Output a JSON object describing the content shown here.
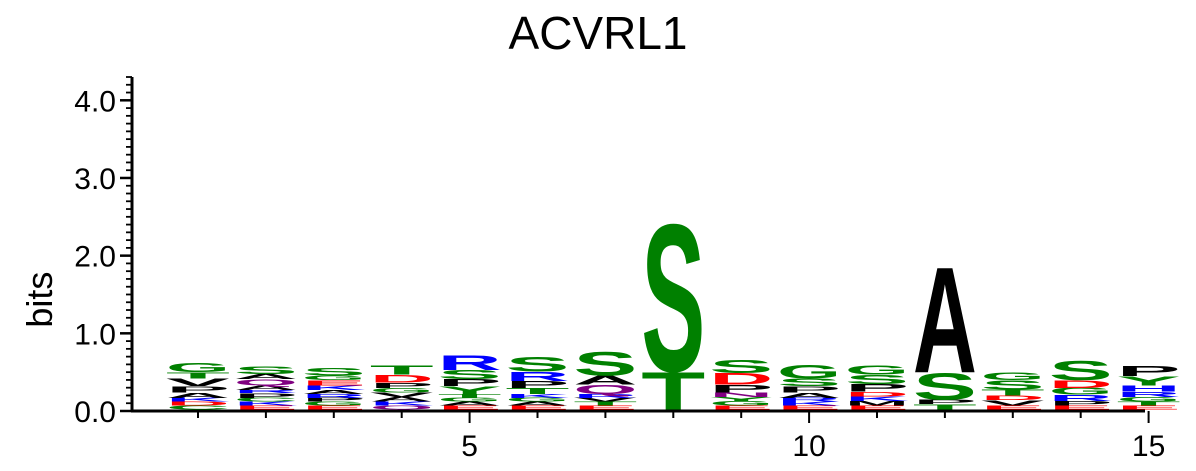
{
  "chart_data": {
    "type": "sequence-logo",
    "title": "ACVRL1",
    "ylabel": "bits",
    "xlabel": "",
    "ylim": [
      0,
      4.3
    ],
    "y_ticks": [
      "0.0",
      "1.0",
      "2.0",
      "3.0",
      "4.0"
    ],
    "x_ticks": [
      "5",
      "10",
      "15"
    ],
    "positions": [
      1,
      2,
      3,
      4,
      5,
      6,
      7,
      8,
      9,
      10,
      11,
      12,
      13,
      14,
      15
    ],
    "colors": {
      "G": "#008000",
      "S": "#008000",
      "T": "#008000",
      "Y": "#008000",
      "C": "#008000",
      "N": "#800080",
      "Q": "#800080",
      "R": "#0000ff",
      "K": "#0000ff",
      "H": "#0000ff",
      "D": "#ff0000",
      "E": "#ff0000",
      "A": "#000000",
      "P": "#000000",
      "V": "#000000",
      "L": "#000000",
      "I": "#000000",
      "M": "#000000",
      "F": "#000000",
      "W": "#000000"
    },
    "stacks": [
      [
        {
          "l": "C",
          "v": 0.05
        },
        {
          "l": "D",
          "v": 0.05
        },
        {
          "l": "K",
          "v": 0.05
        },
        {
          "l": "A",
          "v": 0.07
        },
        {
          "l": "P",
          "v": 0.08
        },
        {
          "l": "V",
          "v": 0.1
        },
        {
          "l": "T",
          "v": 0.08
        },
        {
          "l": "G",
          "v": 0.12
        }
      ],
      [
        {
          "l": "E",
          "v": 0.05
        },
        {
          "l": "K",
          "v": 0.05
        },
        {
          "l": "C",
          "v": 0.05
        },
        {
          "l": "P",
          "v": 0.06
        },
        {
          "l": "R",
          "v": 0.04
        },
        {
          "l": "A",
          "v": 0.06
        },
        {
          "l": "Q",
          "v": 0.08
        },
        {
          "l": "A",
          "v": 0.07
        },
        {
          "l": "S",
          "v": 0.1
        }
      ],
      [
        {
          "l": "E",
          "v": 0.05
        },
        {
          "l": "G",
          "v": 0.05
        },
        {
          "l": "P",
          "v": 0.05
        },
        {
          "l": "R",
          "v": 0.05
        },
        {
          "l": "A",
          "v": 0.05
        },
        {
          "l": "K",
          "v": 0.06
        },
        {
          "l": "E",
          "v": 0.07
        },
        {
          "l": "G",
          "v": 0.06
        },
        {
          "l": "S",
          "v": 0.1
        }
      ],
      [
        {
          "l": "Q",
          "v": 0.05
        },
        {
          "l": "K",
          "v": 0.05
        },
        {
          "l": "A",
          "v": 0.06
        },
        {
          "l": "V",
          "v": 0.06
        },
        {
          "l": "G",
          "v": 0.06
        },
        {
          "l": "P",
          "v": 0.07
        },
        {
          "l": "D",
          "v": 0.1
        },
        {
          "l": "T",
          "v": 0.12
        }
      ],
      [
        {
          "l": "E",
          "v": 0.05
        },
        {
          "l": "A",
          "v": 0.05
        },
        {
          "l": "G",
          "v": 0.05
        },
        {
          "l": "T",
          "v": 0.05
        },
        {
          "l": "Y",
          "v": 0.1
        },
        {
          "l": "P",
          "v": 0.09
        },
        {
          "l": "S",
          "v": 0.12
        },
        {
          "l": "R",
          "v": 0.2
        }
      ],
      [
        {
          "l": "E",
          "v": 0.05
        },
        {
          "l": "A",
          "v": 0.05
        },
        {
          "l": "G",
          "v": 0.05
        },
        {
          "l": "K",
          "v": 0.05
        },
        {
          "l": "T",
          "v": 0.08
        },
        {
          "l": "P",
          "v": 0.09
        },
        {
          "l": "R",
          "v": 0.12
        },
        {
          "l": "S",
          "v": 0.2
        }
      ],
      [
        {
          "l": "E",
          "v": 0.05
        },
        {
          "l": "T",
          "v": 0.05
        },
        {
          "l": "V",
          "v": 0.05
        },
        {
          "l": "R",
          "v": 0.05
        },
        {
          "l": "Q",
          "v": 0.12
        },
        {
          "l": "A",
          "v": 0.12
        },
        {
          "l": "S",
          "v": 0.32
        }
      ],
      [
        {
          "l": "T",
          "v": 0.5
        },
        {
          "l": "S",
          "v": 1.95
        }
      ],
      [
        {
          "l": "E",
          "v": 0.05
        },
        {
          "l": "G",
          "v": 0.06
        },
        {
          "l": "Y",
          "v": 0.05
        },
        {
          "l": "N",
          "v": 0.06
        },
        {
          "l": "P",
          "v": 0.1
        },
        {
          "l": "D",
          "v": 0.15
        },
        {
          "l": "S",
          "v": 0.17
        }
      ],
      [
        {
          "l": "E",
          "v": 0.05
        },
        {
          "l": "K",
          "v": 0.05
        },
        {
          "l": "R",
          "v": 0.05
        },
        {
          "l": "A",
          "v": 0.07
        },
        {
          "l": "P",
          "v": 0.08
        },
        {
          "l": "S",
          "v": 0.1
        },
        {
          "l": "G",
          "v": 0.18
        }
      ],
      [
        {
          "l": "E",
          "v": 0.05
        },
        {
          "l": "M",
          "v": 0.06
        },
        {
          "l": "K",
          "v": 0.06
        },
        {
          "l": "D",
          "v": 0.06
        },
        {
          "l": "P",
          "v": 0.1
        },
        {
          "l": "S",
          "v": 0.12
        },
        {
          "l": "G",
          "v": 0.12
        }
      ],
      [
        {
          "l": "T",
          "v": 0.07
        },
        {
          "l": "P",
          "v": 0.06
        },
        {
          "l": "S",
          "v": 0.35
        },
        {
          "l": "A",
          "v": 1.4
        }
      ],
      [
        {
          "l": "E",
          "v": 0.05
        },
        {
          "l": "V",
          "v": 0.07
        },
        {
          "l": "D",
          "v": 0.06
        },
        {
          "l": "T",
          "v": 0.08
        },
        {
          "l": "S",
          "v": 0.12
        },
        {
          "l": "G",
          "v": 0.1
        }
      ],
      [
        {
          "l": "E",
          "v": 0.05
        },
        {
          "l": "P",
          "v": 0.06
        },
        {
          "l": "R",
          "v": 0.08
        },
        {
          "l": "G",
          "v": 0.09
        },
        {
          "l": "D",
          "v": 0.1
        },
        {
          "l": "S",
          "v": 0.26
        }
      ],
      [
        {
          "l": "E",
          "v": 0.05
        },
        {
          "l": "T",
          "v": 0.05
        },
        {
          "l": "G",
          "v": 0.06
        },
        {
          "l": "R",
          "v": 0.07
        },
        {
          "l": "H",
          "v": 0.08
        },
        {
          "l": "Y",
          "v": 0.12
        },
        {
          "l": "P",
          "v": 0.14
        }
      ]
    ]
  }
}
